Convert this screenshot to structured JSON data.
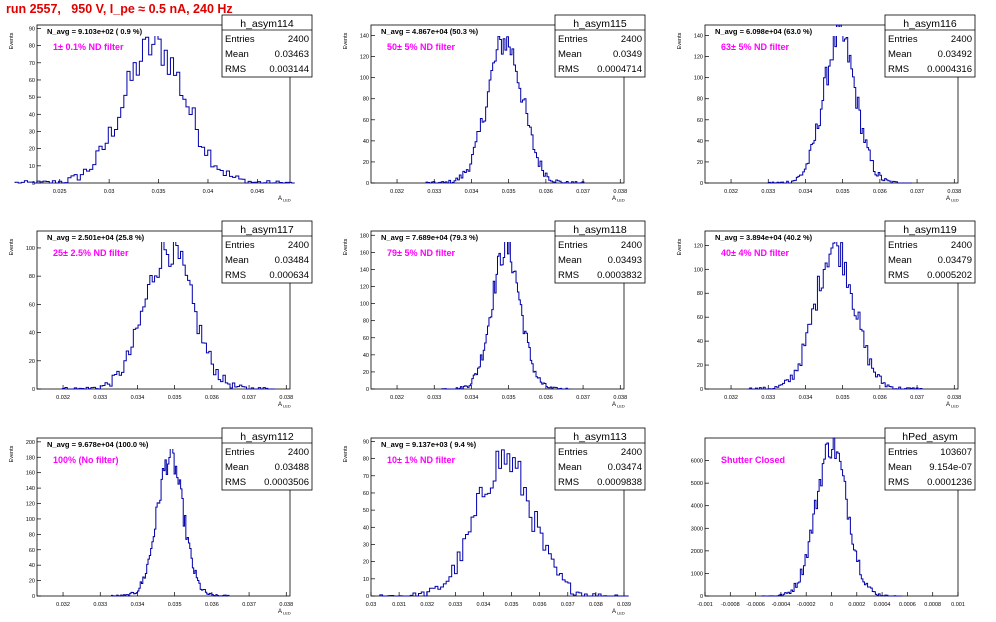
{
  "page": {
    "run_title": "run 2557,   950 V, I_pe ≈ 0.5 nA, 240 Hz",
    "colors": {
      "title": "#e00000",
      "histogram": "#0000aa",
      "annotation": "#ff00ff",
      "axes": "#000000"
    }
  },
  "chart_data": [
    {
      "type": "histogram",
      "name": "h_asym114",
      "ylabel": "Events",
      "xlabel": "A_LED",
      "navg": "N_avg = 9.103e+02 ( 0.9 %)",
      "filter": "1± 0.1% ND filter",
      "stats": {
        "entries": "2400",
        "mean": "0.03463",
        "rms": "0.003144"
      },
      "xlim": [
        0.0227,
        0.0483
      ],
      "ylim": [
        0,
        92
      ],
      "xticks": [
        0.025,
        0.03,
        0.035,
        0.04,
        0.045
      ],
      "xtick_labels": [
        "0.025",
        "0.03",
        "0.035",
        "0.04",
        "0.045"
      ],
      "yticks": [
        0,
        10,
        20,
        30,
        40,
        50,
        60,
        70,
        80,
        90
      ],
      "ytick_labels": [
        "0",
        "10",
        "20",
        "30",
        "40",
        "50",
        "60",
        "70",
        "80",
        "90"
      ],
      "dist": {
        "mean": 0.03463,
        "sigma": 0.003144,
        "peak": 80
      }
    },
    {
      "type": "histogram",
      "name": "h_asym115",
      "ylabel": "Events",
      "xlabel": "A_LED",
      "navg": "N_avg = 4.867e+04 (50.3 %)",
      "filter": "50± 5% ND filter",
      "stats": {
        "entries": "2400",
        "mean": "0.0349",
        "rms": "0.0004714"
      },
      "xlim": [
        0.0313,
        0.0381
      ],
      "ylim": [
        0,
        150
      ],
      "xticks": [
        0.032,
        0.033,
        0.034,
        0.035,
        0.036,
        0.037,
        0.038
      ],
      "xtick_labels": [
        "0.032",
        "0.033",
        "0.034",
        "0.035",
        "0.036",
        "0.037",
        "0.038"
      ],
      "yticks": [
        0,
        20,
        40,
        60,
        80,
        100,
        120,
        140
      ],
      "ytick_labels": [
        "0",
        "20",
        "40",
        "60",
        "80",
        "100",
        "120",
        "140"
      ],
      "dist": {
        "mean": 0.0349,
        "sigma": 0.0004714,
        "peak": 135
      }
    },
    {
      "type": "histogram",
      "name": "h_asym116",
      "ylabel": "Events",
      "xlabel": "A_LED",
      "navg": "N_avg = 6.098e+04 (63.0 %)",
      "filter": "63± 5% ND filter",
      "stats": {
        "entries": "2400",
        "mean": "0.03492",
        "rms": "0.0004316"
      },
      "xlim": [
        0.0313,
        0.0381
      ],
      "ylim": [
        0,
        150
      ],
      "xticks": [
        0.032,
        0.033,
        0.034,
        0.035,
        0.036,
        0.037,
        0.038
      ],
      "xtick_labels": [
        "0.032",
        "0.033",
        "0.034",
        "0.035",
        "0.036",
        "0.037",
        "0.038"
      ],
      "yticks": [
        0,
        20,
        40,
        60,
        80,
        100,
        120,
        140
      ],
      "ytick_labels": [
        "0",
        "20",
        "40",
        "60",
        "80",
        "100",
        "120",
        "140"
      ],
      "dist": {
        "mean": 0.03492,
        "sigma": 0.0004316,
        "peak": 140
      }
    },
    {
      "type": "histogram",
      "name": "h_asym117",
      "ylabel": "Events",
      "xlabel": "A_LED",
      "navg": "N_avg = 2.501e+04 (25.8 %)",
      "filter": "25± 2.5% ND filter",
      "stats": {
        "entries": "2400",
        "mean": "0.03484",
        "rms": "0.000634"
      },
      "xlim": [
        0.0313,
        0.0381
      ],
      "ylim": [
        0,
        112
      ],
      "xticks": [
        0.032,
        0.033,
        0.034,
        0.035,
        0.036,
        0.037,
        0.038
      ],
      "xtick_labels": [
        "0.032",
        "0.033",
        "0.034",
        "0.035",
        "0.036",
        "0.037",
        "0.038"
      ],
      "yticks": [
        0,
        20,
        40,
        60,
        80,
        100
      ],
      "ytick_labels": [
        "0",
        "20",
        "40",
        "60",
        "80",
        "100"
      ],
      "dist": {
        "mean": 0.03484,
        "sigma": 0.000634,
        "peak": 100
      }
    },
    {
      "type": "histogram",
      "name": "h_asym118",
      "ylabel": "Events",
      "xlabel": "A_LED",
      "navg": "N_avg = 7.689e+04 (79.3 %)",
      "filter": "79± 5% ND filter",
      "stats": {
        "entries": "2400",
        "mean": "0.03493",
        "rms": "0.0003832"
      },
      "xlim": [
        0.0313,
        0.0381
      ],
      "ylim": [
        0,
        185
      ],
      "xticks": [
        0.032,
        0.033,
        0.034,
        0.035,
        0.036,
        0.037,
        0.038
      ],
      "xtick_labels": [
        "0.032",
        "0.033",
        "0.034",
        "0.035",
        "0.036",
        "0.037",
        "0.038"
      ],
      "yticks": [
        0,
        20,
        40,
        60,
        80,
        100,
        120,
        140,
        160,
        180
      ],
      "ytick_labels": [
        "0",
        "20",
        "40",
        "60",
        "80",
        "100",
        "120",
        "140",
        "160",
        "180"
      ],
      "dist": {
        "mean": 0.03493,
        "sigma": 0.0003832,
        "peak": 165
      }
    },
    {
      "type": "histogram",
      "name": "h_asym119",
      "ylabel": "Events",
      "xlabel": "A_LED",
      "navg": "N_avg = 3.894e+04 (40.2 %)",
      "filter": "40± 4% ND filter",
      "stats": {
        "entries": "2400",
        "mean": "0.03479",
        "rms": "0.0005202"
      },
      "xlim": [
        0.0313,
        0.0381
      ],
      "ylim": [
        0,
        132
      ],
      "xticks": [
        0.032,
        0.033,
        0.034,
        0.035,
        0.036,
        0.037,
        0.038
      ],
      "xtick_labels": [
        "0.032",
        "0.033",
        "0.034",
        "0.035",
        "0.036",
        "0.037",
        "0.038"
      ],
      "yticks": [
        0,
        20,
        40,
        60,
        80,
        100,
        120
      ],
      "ytick_labels": [
        "0",
        "20",
        "40",
        "60",
        "80",
        "100",
        "120"
      ],
      "dist": {
        "mean": 0.03479,
        "sigma": 0.0005202,
        "peak": 120
      }
    },
    {
      "type": "histogram",
      "name": "h_asym112",
      "ylabel": "Events",
      "xlabel": "A_LED",
      "navg": "N_avg = 9.678e+04 (100.0 %)",
      "filter": "100% (No filter)",
      "stats": {
        "entries": "2400",
        "mean": "0.03488",
        "rms": "0.0003506"
      },
      "xlim": [
        0.0313,
        0.0381
      ],
      "ylim": [
        0,
        205
      ],
      "xticks": [
        0.032,
        0.033,
        0.034,
        0.035,
        0.036,
        0.037,
        0.038
      ],
      "xtick_labels": [
        "0.032",
        "0.033",
        "0.034",
        "0.035",
        "0.036",
        "0.037",
        "0.038"
      ],
      "yticks": [
        0,
        20,
        40,
        60,
        80,
        100,
        120,
        140,
        160,
        180,
        200
      ],
      "ytick_labels": [
        "0",
        "20",
        "40",
        "60",
        "80",
        "100",
        "120",
        "140",
        "160",
        "180",
        "200"
      ],
      "dist": {
        "mean": 0.03488,
        "sigma": 0.0003506,
        "peak": 180
      }
    },
    {
      "type": "histogram",
      "name": "h_asym113",
      "ylabel": "Events",
      "xlabel": "A_LED",
      "navg": "N_avg = 9.137e+03 ( 9.4 %)",
      "filter": "10± 1% ND filter",
      "stats": {
        "entries": "2400",
        "mean": "0.03474",
        "rms": "0.0009838"
      },
      "xlim": [
        0.03,
        0.039
      ],
      "ylim": [
        0,
        92
      ],
      "xticks": [
        0.03,
        0.031,
        0.032,
        0.033,
        0.034,
        0.035,
        0.036,
        0.037,
        0.038,
        0.039
      ],
      "xtick_labels": [
        "0.03",
        "0.031",
        "0.032",
        "0.033",
        "0.034",
        "0.035",
        "0.036",
        "0.037",
        "0.038",
        "0.039"
      ],
      "yticks": [
        0,
        10,
        20,
        30,
        40,
        50,
        60,
        70,
        80,
        90
      ],
      "ytick_labels": [
        "0",
        "10",
        "20",
        "30",
        "40",
        "50",
        "60",
        "70",
        "80",
        "90"
      ],
      "dist": {
        "mean": 0.03474,
        "sigma": 0.0009838,
        "peak": 80
      }
    },
    {
      "type": "histogram",
      "name": "hPed_asym",
      "ylabel": "",
      "xlabel": "",
      "navg": "",
      "filter": "Shutter Closed",
      "stats": {
        "entries": "103607",
        "mean": "9.154e-07",
        "rms": "0.0001236"
      },
      "xlim": [
        -0.001,
        0.001
      ],
      "ylim": [
        0,
        7000
      ],
      "xticks": [
        -0.001,
        -0.0008,
        -0.0006,
        -0.0004,
        -0.0002,
        0,
        0.0002,
        0.0004,
        0.0006,
        0.0008,
        0.001
      ],
      "xtick_labels": [
        "-0.001",
        "-0.0008",
        "-0.0006",
        "-0.0004",
        "-0.0002",
        "0",
        "0.0002",
        "0.0004",
        "0.0006",
        "0.0008",
        "0.001"
      ],
      "yticks": [
        0,
        1000,
        2000,
        3000,
        4000,
        5000,
        6000
      ],
      "ytick_labels": [
        "0",
        "1000",
        "2000",
        "3000",
        "4000",
        "5000",
        "6000"
      ],
      "dist": {
        "mean": 9.154e-07,
        "sigma": 0.0001236,
        "peak": 6700
      }
    }
  ]
}
